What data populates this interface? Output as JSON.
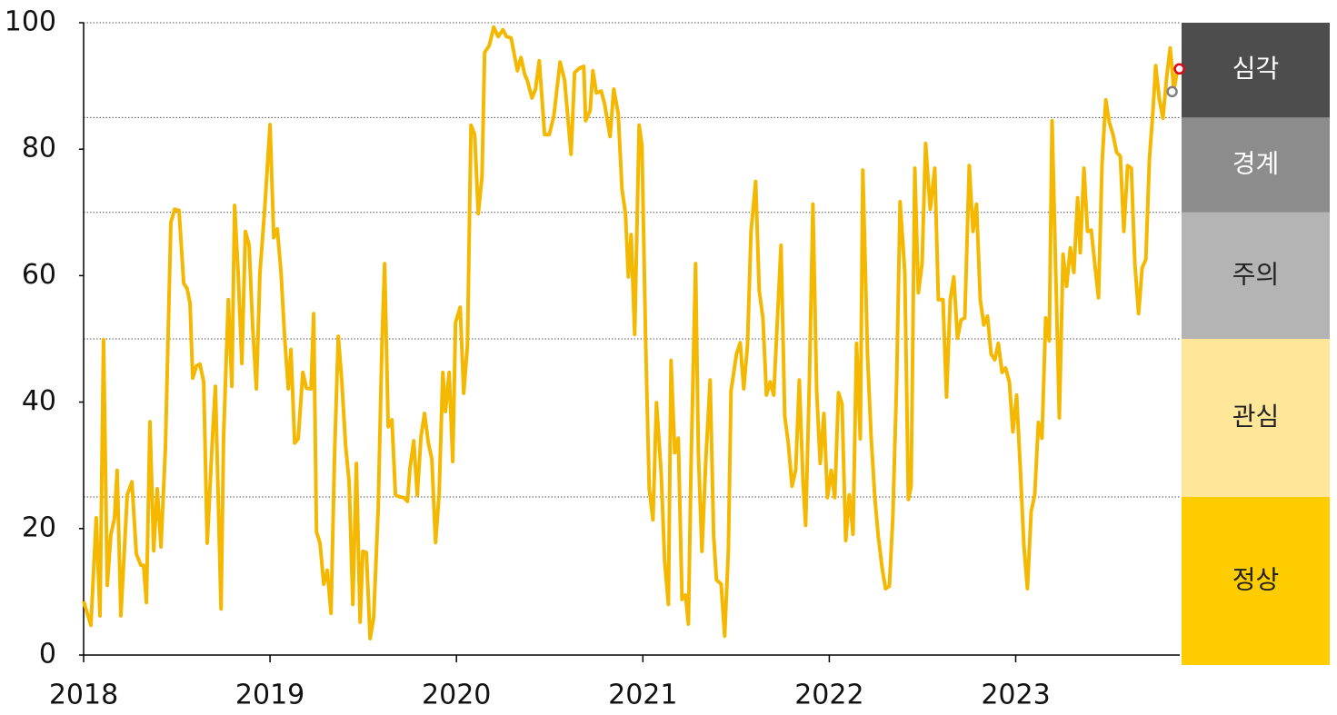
{
  "chart_data": {
    "type": "line",
    "x": [
      2018.0,
      2018.039,
      2018.068,
      2018.088,
      2018.107,
      2018.127,
      2018.146,
      2018.166,
      2018.18,
      2018.2,
      2018.234,
      2018.259,
      2018.283,
      2018.307,
      2018.322,
      2018.337,
      2018.356,
      2018.376,
      2018.395,
      2018.415,
      2018.439,
      2018.468,
      2018.488,
      2018.512,
      2018.537,
      2018.556,
      2018.571,
      2018.585,
      2018.605,
      2018.624,
      2018.644,
      2018.663,
      2018.693,
      2018.707,
      2018.737,
      2018.751,
      2018.776,
      2018.795,
      2018.81,
      2018.829,
      2018.849,
      2018.868,
      2018.888,
      2018.907,
      2018.927,
      2018.946,
      2018.971,
      2019.0,
      2019.02,
      2019.039,
      2019.059,
      2019.078,
      2019.098,
      2019.112,
      2019.132,
      2019.151,
      2019.176,
      2019.195,
      2019.22,
      2019.234,
      2019.249,
      2019.268,
      2019.288,
      2019.307,
      2019.327,
      2019.346,
      2019.366,
      2019.385,
      2019.405,
      2019.424,
      2019.444,
      2019.463,
      2019.483,
      2019.498,
      2019.517,
      2019.537,
      2019.556,
      2019.58,
      2019.6,
      2019.615,
      2019.634,
      2019.654,
      2019.673,
      2019.698,
      2019.717,
      2019.737,
      2019.751,
      2019.771,
      2019.79,
      2019.81,
      2019.829,
      2019.849,
      2019.868,
      2019.888,
      2019.907,
      2019.927,
      2019.941,
      2019.961,
      2019.98,
      2019.995,
      2020.02,
      2020.039,
      2020.059,
      2020.078,
      2020.098,
      2020.117,
      2020.137,
      2020.151,
      2020.176,
      2020.2,
      2020.224,
      2020.249,
      2020.268,
      2020.293,
      2020.327,
      2020.346,
      2020.366,
      2020.38,
      2020.405,
      2020.424,
      2020.444,
      2020.473,
      2020.498,
      2020.522,
      2020.556,
      2020.58,
      2020.615,
      2020.634,
      2020.659,
      2020.683,
      2020.693,
      2020.717,
      2020.732,
      2020.751,
      2020.776,
      2020.795,
      2020.824,
      2020.844,
      2020.868,
      2020.888,
      2020.907,
      2020.922,
      2020.937,
      2020.956,
      2020.98,
      2020.995,
      2021.015,
      2021.034,
      2021.054,
      2021.073,
      2021.098,
      2021.117,
      2021.137,
      2021.151,
      2021.171,
      2021.19,
      2021.21,
      2021.229,
      2021.244,
      2021.259,
      2021.283,
      2021.298,
      2021.317,
      2021.337,
      2021.361,
      2021.38,
      2021.395,
      2021.42,
      2021.439,
      2021.459,
      2021.473,
      2021.502,
      2021.522,
      2021.541,
      2021.561,
      2021.58,
      2021.605,
      2021.624,
      2021.644,
      2021.663,
      2021.683,
      2021.702,
      2021.722,
      2021.741,
      2021.761,
      2021.78,
      2021.8,
      2021.82,
      2021.839,
      2021.859,
      2021.873,
      2021.893,
      2021.912,
      2021.932,
      2021.951,
      2021.971,
      2021.99,
      2022.01,
      2022.029,
      2022.049,
      2022.068,
      2022.088,
      2022.107,
      2022.127,
      2022.146,
      2022.166,
      2022.18,
      2022.205,
      2022.224,
      2022.244,
      2022.263,
      2022.283,
      2022.302,
      2022.322,
      2022.341,
      2022.361,
      2022.38,
      2022.405,
      2022.424,
      2022.439,
      2022.459,
      2022.478,
      2022.498,
      2022.517,
      2022.541,
      2022.566,
      2022.585,
      2022.61,
      2022.629,
      2022.649,
      2022.668,
      2022.688,
      2022.707,
      2022.727,
      2022.751,
      2022.771,
      2022.79,
      2022.81,
      2022.829,
      2022.849,
      2022.868,
      2022.888,
      2022.907,
      2022.927,
      2022.946,
      2022.966,
      2022.985,
      2023.005,
      2023.024,
      2023.044,
      2023.063,
      2023.083,
      2023.102,
      2023.122,
      2023.141,
      2023.161,
      2023.18,
      2023.195,
      2023.215,
      2023.234,
      2023.254,
      2023.273,
      2023.293,
      2023.312,
      2023.332,
      2023.346,
      2023.366,
      2023.385,
      2023.405,
      2023.424,
      2023.444,
      2023.463,
      2023.483,
      2023.502,
      2023.522,
      2023.541,
      2023.561,
      2023.58,
      2023.6,
      2023.62,
      2023.639,
      2023.659,
      2023.678,
      2023.698,
      2023.717,
      2023.737,
      2023.751,
      2023.771,
      2023.79,
      2023.81,
      2023.829,
      2023.849,
      2023.868
    ],
    "series": [
      {
        "color": "#f5b800",
        "values": [
          8.5,
          4.7,
          21.7,
          6.2,
          49.9,
          11,
          19,
          21.7,
          29.2,
          6.2,
          25.3,
          27.4,
          16,
          14.2,
          14.2,
          8.3,
          36.9,
          16.5,
          26.3,
          17.1,
          32.8,
          68.4,
          70.5,
          70.3,
          58.8,
          57.9,
          55.6,
          43.8,
          45.7,
          46,
          43.2,
          17.7,
          35.3,
          42.5,
          7.3,
          34.6,
          56.2,
          42.5,
          71.1,
          60.5,
          46.1,
          67,
          64.8,
          51.9,
          42.1,
          60.5,
          70.5,
          83.9,
          66,
          67.4,
          60.5,
          50.4,
          42.1,
          48.3,
          33.5,
          34.2,
          44.7,
          42.2,
          42.1,
          54,
          19.5,
          17.7,
          11.2,
          13.4,
          6.6,
          31.8,
          50.4,
          43.2,
          33.2,
          27.4,
          8,
          30.3,
          5.2,
          16.4,
          16.2,
          2.6,
          5.9,
          23.1,
          49,
          61.9,
          36.1,
          37.2,
          25.3,
          25,
          24.9,
          24.3,
          29.6,
          33.9,
          25.3,
          34.6,
          38.2,
          33.6,
          31,
          17.8,
          25.3,
          44.7,
          38.5,
          44.7,
          30.6,
          52.6,
          55,
          41.4,
          49,
          83.8,
          82.3,
          69.8,
          75.6,
          95.3,
          96.4,
          99.3,
          97.8,
          98.9,
          97.8,
          97.6,
          92.4,
          94.5,
          91.8,
          90.9,
          88.1,
          89.5,
          94,
          82.3,
          82.3,
          85.2,
          93.8,
          90.9,
          79.2,
          92.1,
          92.8,
          93.1,
          84.5,
          86.1,
          92.4,
          88.9,
          89.2,
          87.1,
          82,
          89.5,
          85.6,
          73.7,
          69.8,
          59.8,
          66.5,
          50.7,
          83.8,
          80.6,
          49.3,
          26.3,
          21.4,
          39.9,
          28.9,
          14.8,
          8,
          46.6,
          32,
          34.3,
          8.8,
          9.5,
          4.9,
          30.6,
          61.9,
          31.8,
          16.4,
          30.3,
          43.5,
          18.8,
          11.9,
          11.2,
          3,
          16.7,
          41.8,
          47.6,
          49.4,
          42.1,
          49,
          67,
          74.9,
          57.6,
          53.3,
          41.1,
          43.2,
          41.1,
          53.3,
          64.8,
          37.8,
          33.5,
          26.7,
          29.3,
          43.5,
          27.4,
          20.5,
          43.2,
          71.3,
          41.8,
          30.3,
          38.2,
          24.9,
          29.2,
          24.9,
          41.5,
          39.7,
          18.1,
          25.3,
          19.1,
          49.3,
          34.2,
          76.7,
          47.3,
          34.6,
          24.9,
          18.8,
          13.8,
          10.5,
          10.9,
          21.7,
          43.2,
          71.7,
          60.5,
          24.6,
          26.7,
          77,
          57.3,
          61.9,
          80.9,
          70.5,
          77,
          56.2,
          56.2,
          40.8,
          56.2,
          59.8,
          50.1,
          53,
          53.3,
          77.4,
          67,
          71.3,
          56.2,
          52.2,
          53.6,
          47.6,
          46.7,
          49.3,
          44.7,
          45.4,
          43.2,
          35.3,
          41.1,
          30,
          17.4,
          10.5,
          22.7,
          25.3,
          36.8,
          34.3,
          53.3,
          49.7,
          84.5,
          60.5,
          37.5,
          63.4,
          58.3,
          64.4,
          60.5,
          72.3,
          63.6,
          77,
          67,
          67.2,
          61.9,
          56.5,
          77.7,
          87.8,
          84.2,
          82.3,
          79.5,
          78.9,
          67,
          77.4,
          77,
          61.9,
          54,
          61.2,
          62.6,
          78.4,
          86.4,
          93.2,
          87.8,
          84.9,
          91.4,
          96,
          89.2,
          92.8
        ]
      }
    ],
    "points": [
      {
        "x": 2023.839,
        "y": 89.1,
        "color": "#808080"
      },
      {
        "x": 2023.878,
        "y": 92.7,
        "color": "#e60012"
      }
    ],
    "bands": [
      {
        "name": "정상",
        "from": 0,
        "to": 25,
        "color": "#ffcc00"
      },
      {
        "name": "관심",
        "from": 25,
        "to": 50,
        "color": "#ffe699"
      },
      {
        "name": "주의",
        "from": 50,
        "to": 70,
        "color": "#b4b4b4"
      },
      {
        "name": "경계",
        "from": 70,
        "to": 85,
        "color": "#8c8c8c"
      },
      {
        "name": "심각",
        "from": 85,
        "to": 100,
        "color": "#4d4d4d"
      }
    ],
    "xlim": [
      2018,
      2023.88
    ],
    "ylim": [
      0,
      100
    ],
    "xticks": [
      2018,
      2019,
      2020,
      2021,
      2022,
      2023
    ],
    "yticks": [
      0,
      20,
      40,
      60,
      80,
      100
    ]
  }
}
